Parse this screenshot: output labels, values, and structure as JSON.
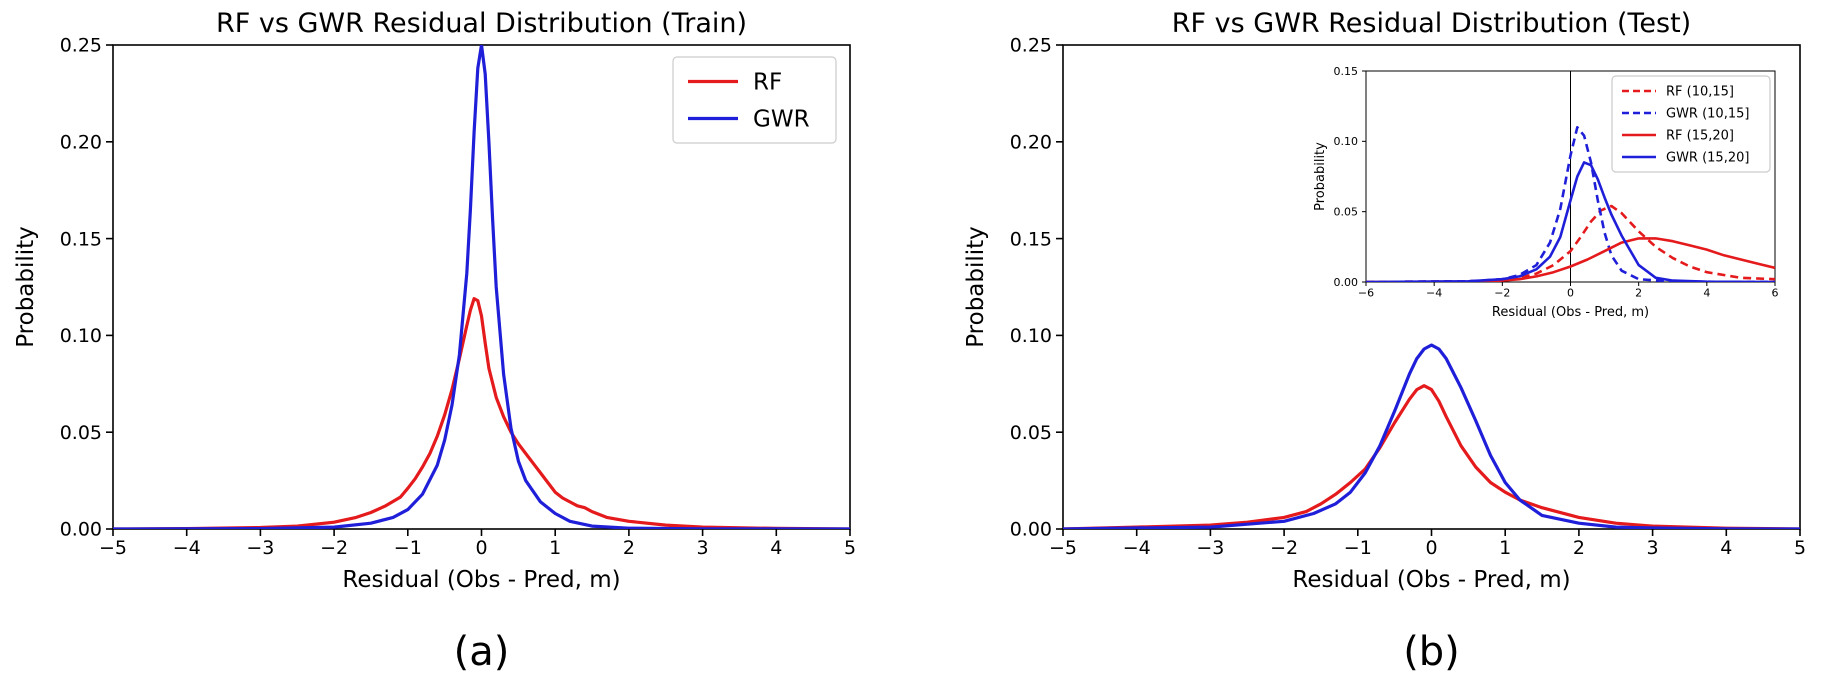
{
  "chart_data": [
    {
      "id": "train",
      "type": "line",
      "panel_label": "(a)",
      "title": "RF vs GWR Residual Distribution (Train)",
      "xlabel": "Residual (Obs - Pred, m)",
      "ylabel": "Probability",
      "xlim": [
        -5,
        5
      ],
      "ylim": [
        0,
        0.25
      ],
      "xticks": [
        -5,
        -4,
        -3,
        -2,
        -1,
        0,
        1,
        2,
        3,
        4,
        5
      ],
      "xtick_labels": [
        "−5",
        "−4",
        "−3",
        "−2",
        "−1",
        "0",
        "1",
        "2",
        "3",
        "4",
        "5"
      ],
      "yticks": [
        0,
        0.05,
        0.1,
        0.15,
        0.2,
        0.25
      ],
      "ytick_labels": [
        "0.00",
        "0.05",
        "0.10",
        "0.15",
        "0.20",
        "0.25"
      ],
      "legend_position": "top-right",
      "grid": false,
      "series": [
        {
          "name": "RF",
          "color": "#e41a1c",
          "style": "solid",
          "x": [
            -5,
            -4,
            -3,
            -2.5,
            -2,
            -1.7,
            -1.5,
            -1.3,
            -1.1,
            -1,
            -0.9,
            -0.8,
            -0.7,
            -0.6,
            -0.5,
            -0.4,
            -0.3,
            -0.2,
            -0.15,
            -0.1,
            -0.05,
            0,
            0.05,
            0.1,
            0.2,
            0.3,
            0.4,
            0.5,
            0.6,
            0.7,
            0.8,
            0.9,
            1,
            1.1,
            1.2,
            1.3,
            1.4,
            1.5,
            1.7,
            2,
            2.5,
            3,
            4,
            5
          ],
          "y": [
            0,
            0.0002,
            0.0008,
            0.0015,
            0.0035,
            0.006,
            0.0085,
            0.012,
            0.0165,
            0.021,
            0.026,
            0.032,
            0.039,
            0.048,
            0.059,
            0.072,
            0.088,
            0.105,
            0.113,
            0.119,
            0.118,
            0.11,
            0.096,
            0.083,
            0.068,
            0.058,
            0.05,
            0.044,
            0.039,
            0.034,
            0.029,
            0.024,
            0.019,
            0.016,
            0.014,
            0.012,
            0.011,
            0.009,
            0.006,
            0.004,
            0.002,
            0.001,
            0.0003,
            0
          ]
        },
        {
          "name": "GWR",
          "color": "#1f1fd9",
          "style": "solid",
          "x": [
            -5,
            -3,
            -2,
            -1.5,
            -1.2,
            -1,
            -0.8,
            -0.6,
            -0.5,
            -0.4,
            -0.3,
            -0.2,
            -0.15,
            -0.1,
            -0.05,
            0,
            0.05,
            0.1,
            0.15,
            0.2,
            0.3,
            0.4,
            0.5,
            0.6,
            0.8,
            1,
            1.2,
            1.5,
            2,
            3,
            5
          ],
          "y": [
            0,
            0.0002,
            0.001,
            0.003,
            0.006,
            0.01,
            0.018,
            0.033,
            0.046,
            0.064,
            0.09,
            0.132,
            0.165,
            0.205,
            0.238,
            0.25,
            0.235,
            0.2,
            0.16,
            0.125,
            0.08,
            0.052,
            0.035,
            0.025,
            0.014,
            0.008,
            0.004,
            0.0015,
            0.0004,
            0.0001,
            0
          ]
        }
      ]
    },
    {
      "id": "test",
      "type": "line",
      "panel_label": "(b)",
      "title": "RF vs GWR Residual Distribution (Test)",
      "xlabel": "Residual (Obs - Pred, m)",
      "ylabel": "Probability",
      "xlim": [
        -5,
        5
      ],
      "ylim": [
        0,
        0.25
      ],
      "xticks": [
        -5,
        -4,
        -3,
        -2,
        -1,
        0,
        1,
        2,
        3,
        4,
        5
      ],
      "xtick_labels": [
        "−5",
        "−4",
        "−3",
        "−2",
        "−1",
        "0",
        "1",
        "2",
        "3",
        "4",
        "5"
      ],
      "yticks": [
        0,
        0.05,
        0.1,
        0.15,
        0.2,
        0.25
      ],
      "ytick_labels": [
        "0.00",
        "0.05",
        "0.10",
        "0.15",
        "0.20",
        "0.25"
      ],
      "grid": false,
      "series": [
        {
          "name": "RF",
          "color": "#e41a1c",
          "style": "solid",
          "x": [
            -5,
            -4,
            -3,
            -2.5,
            -2,
            -1.7,
            -1.5,
            -1.3,
            -1.1,
            -0.9,
            -0.7,
            -0.5,
            -0.3,
            -0.2,
            -0.1,
            0,
            0.1,
            0.2,
            0.4,
            0.6,
            0.8,
            1,
            1.2,
            1.5,
            2,
            2.5,
            3,
            4,
            5
          ],
          "y": [
            0,
            0.001,
            0.002,
            0.0035,
            0.006,
            0.009,
            0.013,
            0.018,
            0.024,
            0.031,
            0.042,
            0.055,
            0.067,
            0.072,
            0.074,
            0.072,
            0.066,
            0.058,
            0.043,
            0.032,
            0.024,
            0.019,
            0.015,
            0.011,
            0.006,
            0.003,
            0.0015,
            0.0004,
            0
          ]
        },
        {
          "name": "GWR",
          "color": "#1f1fd9",
          "style": "solid",
          "x": [
            -5,
            -4,
            -3,
            -2.5,
            -2,
            -1.6,
            -1.3,
            -1.1,
            -0.9,
            -0.7,
            -0.5,
            -0.3,
            -0.2,
            -0.1,
            0,
            0.1,
            0.2,
            0.4,
            0.6,
            0.8,
            1,
            1.2,
            1.5,
            2,
            2.5,
            3,
            4,
            5
          ],
          "y": [
            0,
            0.0005,
            0.001,
            0.0025,
            0.004,
            0.008,
            0.013,
            0.019,
            0.029,
            0.043,
            0.061,
            0.08,
            0.088,
            0.093,
            0.095,
            0.093,
            0.088,
            0.073,
            0.056,
            0.038,
            0.024,
            0.015,
            0.007,
            0.003,
            0.001,
            0.0005,
            0.0001,
            0
          ]
        }
      ],
      "inset": {
        "type": "line",
        "xlabel": "Residual (Obs - Pred, m)",
        "ylabel": "Probability",
        "xlim": [
          -6,
          6
        ],
        "ylim": [
          0,
          0.15
        ],
        "xticks": [
          -6,
          -4,
          -2,
          0,
          2,
          4,
          6
        ],
        "xtick_labels": [
          "−6",
          "−4",
          "−2",
          "0",
          "2",
          "4",
          "6"
        ],
        "yticks": [
          0,
          0.05,
          0.1,
          0.15
        ],
        "ytick_labels": [
          "0.00",
          "0.05",
          "0.10",
          "0.15"
        ],
        "vline_x": 0,
        "legend_position": "top-right",
        "series": [
          {
            "name": "RF (10,15]",
            "color": "#e41a1c",
            "style": "dashed",
            "x": [
              -6,
              -3,
              -2,
              -1.5,
              -1,
              -0.5,
              0,
              0.3,
              0.6,
              0.9,
              1.2,
              1.5,
              2,
              2.5,
              3,
              3.5,
              4,
              5,
              6
            ],
            "y": [
              0,
              0.0005,
              0.0015,
              0.003,
              0.006,
              0.012,
              0.022,
              0.032,
              0.043,
              0.051,
              0.054,
              0.049,
              0.036,
              0.025,
              0.017,
              0.011,
              0.007,
              0.003,
              0.002
            ]
          },
          {
            "name": "GWR (10,15]",
            "color": "#1f1fd9",
            "style": "dashed",
            "x": [
              -6,
              -3,
              -2,
              -1.5,
              -1,
              -0.6,
              -0.3,
              0,
              0.2,
              0.4,
              0.6,
              0.8,
              1,
              1.2,
              1.5,
              2,
              3,
              6
            ],
            "y": [
              0,
              0.0005,
              0.002,
              0.005,
              0.012,
              0.028,
              0.052,
              0.09,
              0.11,
              0.104,
              0.085,
              0.058,
              0.035,
              0.019,
              0.008,
              0.002,
              0.0003,
              0
            ]
          },
          {
            "name": "RF (15,20]",
            "color": "#e41a1c",
            "style": "solid",
            "x": [
              -6,
              -3,
              -2,
              -1.5,
              -1,
              -0.5,
              0,
              0.5,
              1,
              1.5,
              2,
              2.5,
              3,
              3.5,
              4,
              4.5,
              5,
              5.5,
              6
            ],
            "y": [
              0,
              0.0003,
              0.001,
              0.002,
              0.004,
              0.007,
              0.011,
              0.016,
              0.022,
              0.028,
              0.031,
              0.031,
              0.029,
              0.026,
              0.023,
              0.019,
              0.016,
              0.013,
              0.01
            ]
          },
          {
            "name": "GWR (15,20]",
            "color": "#1f1fd9",
            "style": "solid",
            "x": [
              -6,
              -3,
              -2,
              -1.5,
              -1,
              -0.6,
              -0.3,
              0,
              0.2,
              0.4,
              0.6,
              0.8,
              1,
              1.2,
              1.5,
              2,
              2.5,
              3,
              4,
              6
            ],
            "y": [
              0,
              0.0005,
              0.002,
              0.004,
              0.009,
              0.018,
              0.032,
              0.058,
              0.075,
              0.085,
              0.083,
              0.073,
              0.06,
              0.048,
              0.033,
              0.012,
              0.003,
              0.001,
              0.0002,
              0
            ]
          }
        ]
      }
    }
  ]
}
